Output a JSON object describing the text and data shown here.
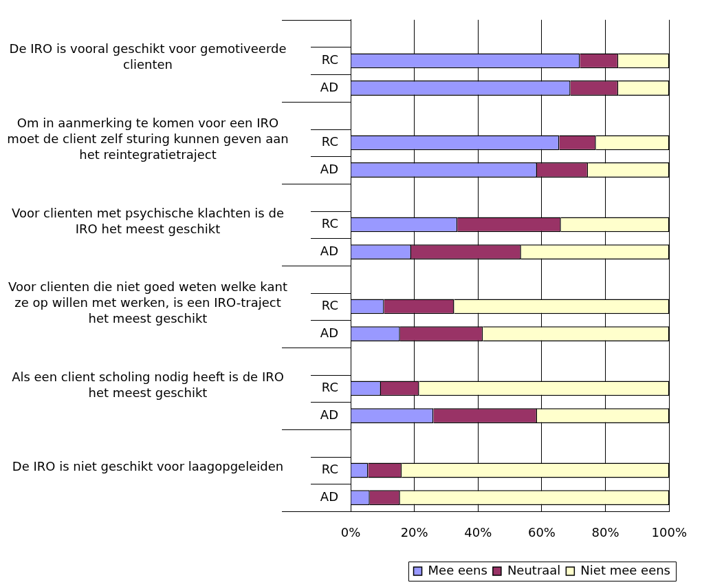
{
  "chart_data": {
    "type": "bar",
    "orientation": "horizontal",
    "stacked": true,
    "categories": [
      null,
      "RC",
      "AD",
      null,
      "RC",
      "AD",
      null,
      "RC",
      "AD",
      null,
      "RC",
      "AD",
      null,
      "RC",
      "AD",
      null,
      "RC",
      "AD"
    ],
    "series": [
      {
        "name": "Mee eens",
        "color": "#9999ff",
        "values": [
          null,
          72,
          69,
          null,
          65.5,
          58.5,
          null,
          33.5,
          19,
          null,
          10.5,
          15.5,
          null,
          9.5,
          26,
          null,
          5.5,
          6
        ]
      },
      {
        "name": "Neutraal",
        "color": "#993366",
        "values": [
          null,
          12,
          15,
          null,
          11.5,
          16,
          null,
          32.5,
          34.5,
          null,
          22,
          26,
          null,
          12,
          32.5,
          null,
          10.5,
          9.5
        ]
      },
      {
        "name": "Niet mee eens",
        "color": "#ffffcc",
        "values": [
          null,
          16,
          16,
          null,
          23,
          25.5,
          null,
          34,
          46.5,
          null,
          67.5,
          58.5,
          null,
          78.5,
          41.5,
          null,
          84,
          84.5
        ]
      }
    ],
    "xlim": [
      0,
      100
    ],
    "xticks": [
      {
        "value": 0,
        "label": "0%"
      },
      {
        "value": 20,
        "label": "20%"
      },
      {
        "value": 40,
        "label": "40%"
      },
      {
        "value": 60,
        "label": "60%"
      },
      {
        "value": 80,
        "label": "80%"
      },
      {
        "value": 100,
        "label": "100%"
      }
    ],
    "grid": "x",
    "legend": "bottom right",
    "annotations": [
      "De IRO is vooral geschikt voor gemotiveerde clienten",
      "Om in aanmerking te komen voor een IRO moet de client zelf sturing kunnen geven aan het reintegratietraject",
      "Voor clienten met psychische klachten is de IRO het meest geschikt",
      "Voor clienten die niet goed weten welke kant ze op willen met werken, is een IRO-traject het meest geschikt",
      "Als een client scholing nodig heeft is de IRO het meest geschikt",
      "De IRO is niet geschikt voor laagopgeleiden"
    ]
  }
}
